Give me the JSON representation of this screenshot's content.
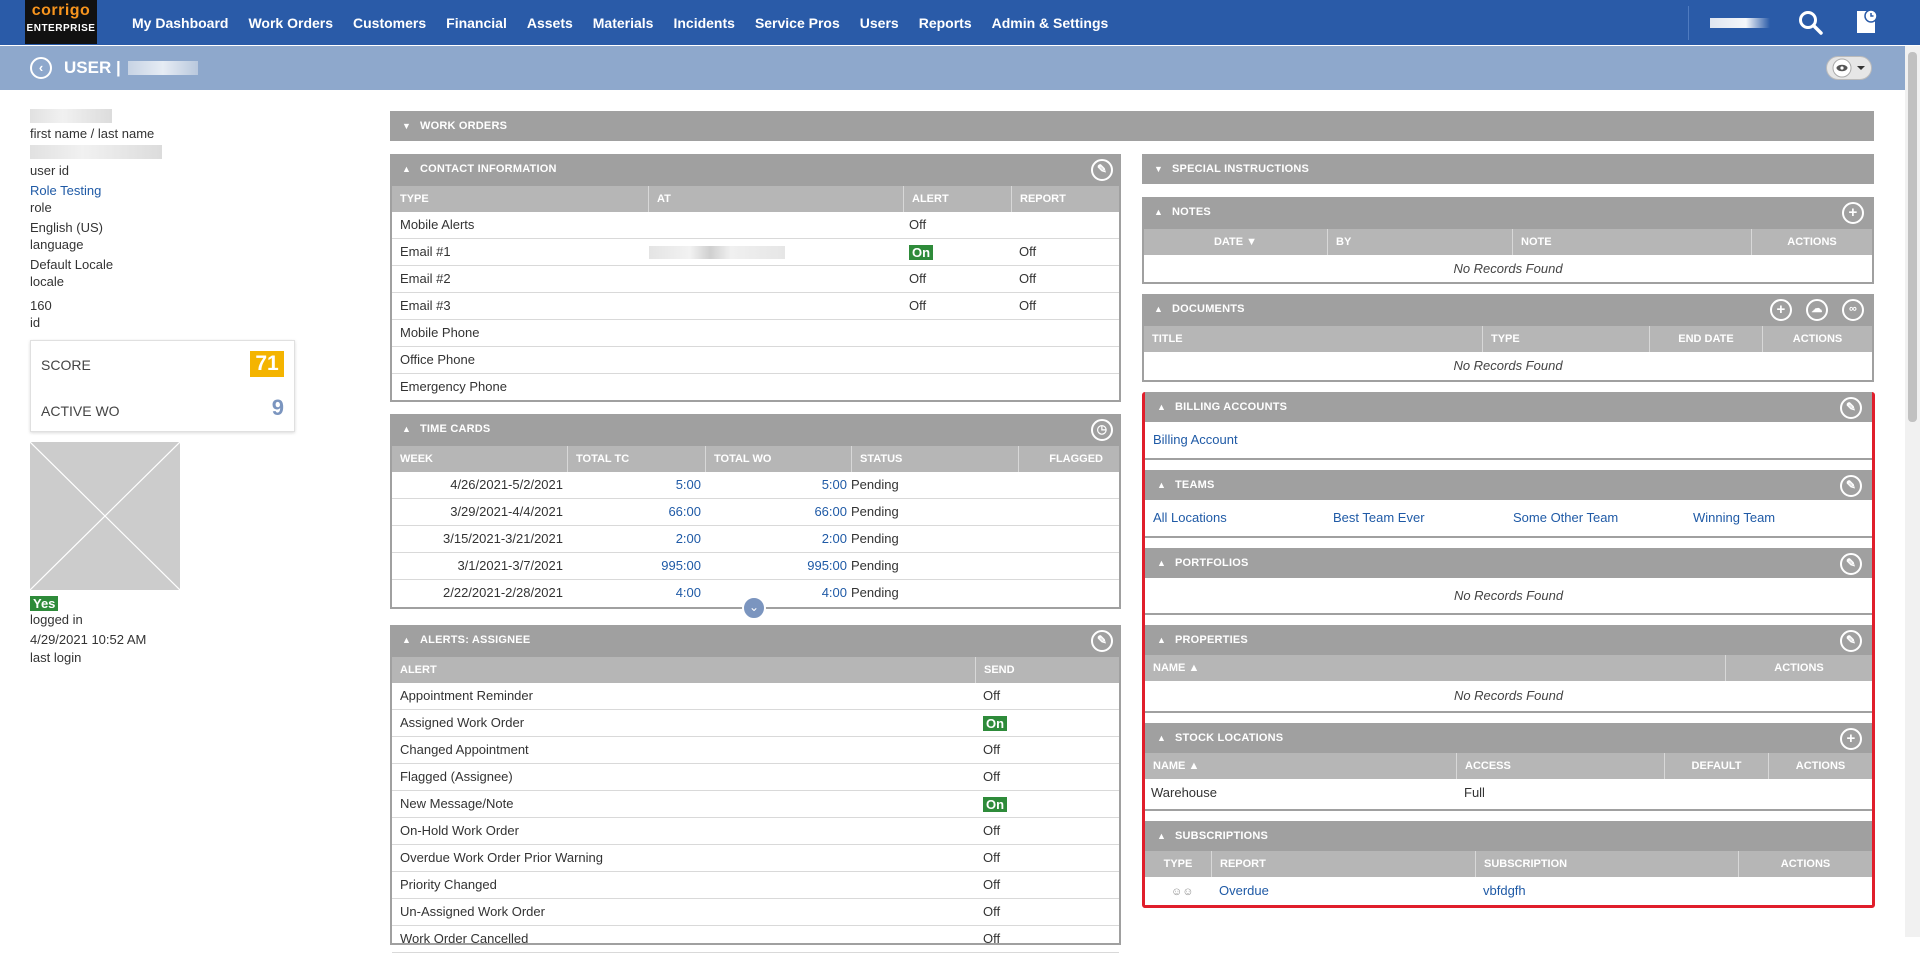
{
  "brand": {
    "name": "corrigo",
    "edition": "ENTERPRISE"
  },
  "nav": [
    "My Dashboard",
    "Work Orders",
    "Customers",
    "Financial",
    "Assets",
    "Materials",
    "Incidents",
    "Service Pros",
    "Users",
    "Reports",
    "Admin & Settings"
  ],
  "page": {
    "title": "USER |"
  },
  "user": {
    "name_label": "first name / last name",
    "userid_label": "user id",
    "role": "Role Testing",
    "role_label": "role",
    "language": "English (US)",
    "language_label": "language",
    "locale": "Default Locale",
    "locale_label": "locale",
    "id": "160",
    "id_label": "id",
    "score_label": "SCORE",
    "score": "71",
    "active_wo_label": "ACTIVE WO",
    "active_wo": "9",
    "logged_in": "Yes",
    "logged_in_label": "logged in",
    "last_login": "4/29/2021 10:52 AM",
    "last_login_label": "last login"
  },
  "work_orders": {
    "title": "WORK ORDERS"
  },
  "contact": {
    "title": "CONTACT INFORMATION",
    "columns": [
      "TYPE",
      "AT",
      "ALERT",
      "REPORT"
    ],
    "rows": [
      {
        "type": "Mobile Alerts",
        "alert": "Off",
        "report": ""
      },
      {
        "type": "Email #1",
        "alert": "On",
        "report": "Off"
      },
      {
        "type": "Email #2",
        "alert": "Off",
        "report": "Off"
      },
      {
        "type": "Email #3",
        "alert": "Off",
        "report": "Off"
      },
      {
        "type": "Mobile Phone",
        "alert": "",
        "report": ""
      },
      {
        "type": "Office Phone",
        "alert": "",
        "report": ""
      },
      {
        "type": "Emergency Phone",
        "alert": "",
        "report": ""
      }
    ]
  },
  "timecards": {
    "title": "TIME CARDS",
    "columns": [
      "WEEK",
      "TOTAL TC",
      "TOTAL WO",
      "STATUS",
      "FLAGGED"
    ],
    "rows": [
      {
        "week": "4/26/2021-5/2/2021",
        "tc": "5:00",
        "wo": "5:00",
        "status": "Pending"
      },
      {
        "week": "3/29/2021-4/4/2021",
        "tc": "66:00",
        "wo": "66:00",
        "status": "Pending"
      },
      {
        "week": "3/15/2021-3/21/2021",
        "tc": "2:00",
        "wo": "2:00",
        "status": "Pending"
      },
      {
        "week": "3/1/2021-3/7/2021",
        "tc": "995:00",
        "wo": "995:00",
        "status": "Pending"
      },
      {
        "week": "2/22/2021-2/28/2021",
        "tc": "4:00",
        "wo": "4:00",
        "status": "Pending"
      }
    ]
  },
  "alerts": {
    "title": "ALERTS: ASSIGNEE",
    "columns": [
      "ALERT",
      "SEND"
    ],
    "rows": [
      {
        "alert": "Appointment Reminder",
        "send": "Off"
      },
      {
        "alert": "Assigned Work Order",
        "send": "On"
      },
      {
        "alert": "Changed Appointment",
        "send": "Off"
      },
      {
        "alert": "Flagged (Assignee)",
        "send": "Off"
      },
      {
        "alert": "New Message/Note",
        "send": "On"
      },
      {
        "alert": "On-Hold Work Order",
        "send": "Off"
      },
      {
        "alert": "Overdue Work Order Prior Warning",
        "send": "Off"
      },
      {
        "alert": "Priority Changed",
        "send": "Off"
      },
      {
        "alert": "Un-Assigned Work Order",
        "send": "Off"
      },
      {
        "alert": "Work Order Cancelled",
        "send": "Off"
      }
    ]
  },
  "special": {
    "title": "SPECIAL INSTRUCTIONS"
  },
  "notes": {
    "title": "NOTES",
    "columns": [
      "DATE",
      "BY",
      "NOTE",
      "ACTIONS"
    ],
    "empty": "No Records Found"
  },
  "documents": {
    "title": "DOCUMENTS",
    "columns": [
      "TITLE",
      "TYPE",
      "END DATE",
      "ACTIONS"
    ],
    "empty": "No Records Found"
  },
  "billing": {
    "title": "BILLING ACCOUNTS",
    "link": "Billing Account"
  },
  "teams": {
    "title": "TEAMS",
    "items": [
      "All Locations",
      "Best Team Ever",
      "Some Other Team",
      "Winning Team"
    ]
  },
  "portfolios": {
    "title": "PORTFOLIOS",
    "empty": "No Records Found"
  },
  "properties": {
    "title": "PROPERTIES",
    "columns": [
      "NAME",
      "ACTIONS"
    ],
    "empty": "No Records Found"
  },
  "stock": {
    "title": "STOCK LOCATIONS",
    "columns": [
      "NAME",
      "ACCESS",
      "DEFAULT",
      "ACTIONS"
    ],
    "row": {
      "name": "Warehouse",
      "access": "Full"
    }
  },
  "subscriptions": {
    "title": "SUBSCRIPTIONS",
    "columns": [
      "TYPE",
      "REPORT",
      "SUBSCRIPTION",
      "ACTIONS"
    ],
    "row": {
      "report": "Overdue",
      "subscription": "vbfdgfh"
    }
  }
}
